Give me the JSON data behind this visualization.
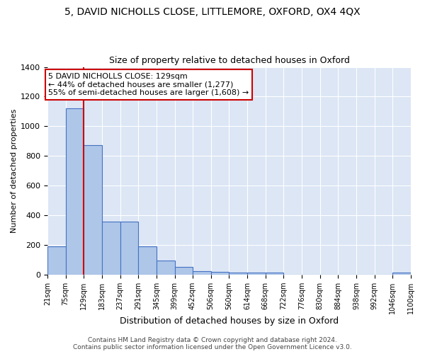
{
  "title": "5, DAVID NICHOLLS CLOSE, LITTLEMORE, OXFORD, OX4 4QX",
  "subtitle": "Size of property relative to detached houses in Oxford",
  "xlabel": "Distribution of detached houses by size in Oxford",
  "ylabel": "Number of detached properties",
  "bar_left_edges": [
    21,
    75,
    129,
    183,
    237,
    291,
    345,
    399,
    452,
    506,
    560,
    614,
    668,
    722,
    776,
    830,
    884,
    938,
    992,
    1046
  ],
  "bar_heights": [
    190,
    1120,
    875,
    355,
    355,
    190,
    95,
    50,
    25,
    20,
    13,
    13,
    13,
    0,
    0,
    0,
    0,
    0,
    0,
    13
  ],
  "bin_width": 54,
  "tick_labels": [
    "21sqm",
    "75sqm",
    "129sqm",
    "183sqm",
    "237sqm",
    "291sqm",
    "345sqm",
    "399sqm",
    "452sqm",
    "506sqm",
    "560sqm",
    "614sqm",
    "668sqm",
    "722sqm",
    "776sqm",
    "830sqm",
    "884sqm",
    "938sqm",
    "992sqm",
    "1046sqm",
    "1100sqm"
  ],
  "bar_color": "#aec6e8",
  "bar_edge_color": "#4472c4",
  "property_line_x": 129,
  "property_line_color": "#cc0000",
  "annotation_text": "5 DAVID NICHOLLS CLOSE: 129sqm\n← 44% of detached houses are smaller (1,277)\n55% of semi-detached houses are larger (1,608) →",
  "annotation_box_color": "#ffffff",
  "annotation_box_edge": "#cc0000",
  "ylim": [
    0,
    1400
  ],
  "yticks": [
    0,
    200,
    400,
    600,
    800,
    1000,
    1200,
    1400
  ],
  "background_color": "#dce6f5",
  "grid_color": "#ffffff",
  "fig_background": "#ffffff",
  "footer": "Contains HM Land Registry data © Crown copyright and database right 2024.\nContains public sector information licensed under the Open Government Licence v3.0.",
  "title_fontsize": 10,
  "subtitle_fontsize": 9,
  "xlabel_fontsize": 9,
  "ylabel_fontsize": 8,
  "tick_fontsize": 7,
  "annotation_fontsize": 8,
  "footer_fontsize": 6.5
}
